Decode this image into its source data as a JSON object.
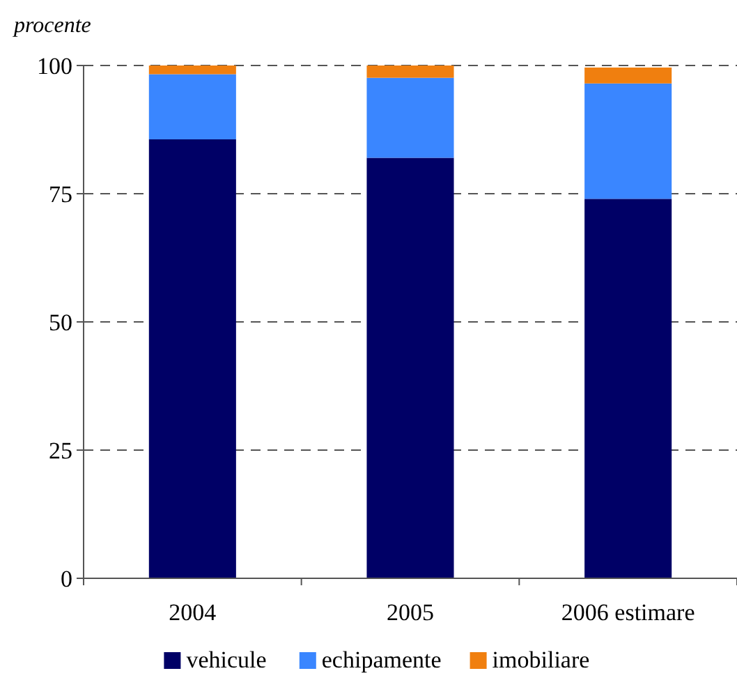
{
  "chart_data": {
    "type": "bar",
    "stacked": true,
    "ylabel": "procente",
    "categories": [
      "2004",
      "2005",
      "2006 estimare"
    ],
    "series": [
      {
        "name": "vehicule",
        "color": "#000066",
        "values": [
          85.6,
          82.0,
          74.0
        ]
      },
      {
        "name": "echipamente",
        "color": "#3a86ff",
        "values": [
          12.7,
          15.6,
          22.5
        ]
      },
      {
        "name": "imobiliare",
        "color": "#f07f0f",
        "values": [
          1.7,
          2.4,
          3.1
        ]
      }
    ],
    "ylim": [
      0,
      100
    ],
    "yticks": [
      0,
      25,
      50,
      75,
      100
    ],
    "grid": "y",
    "legend": "bottom"
  }
}
